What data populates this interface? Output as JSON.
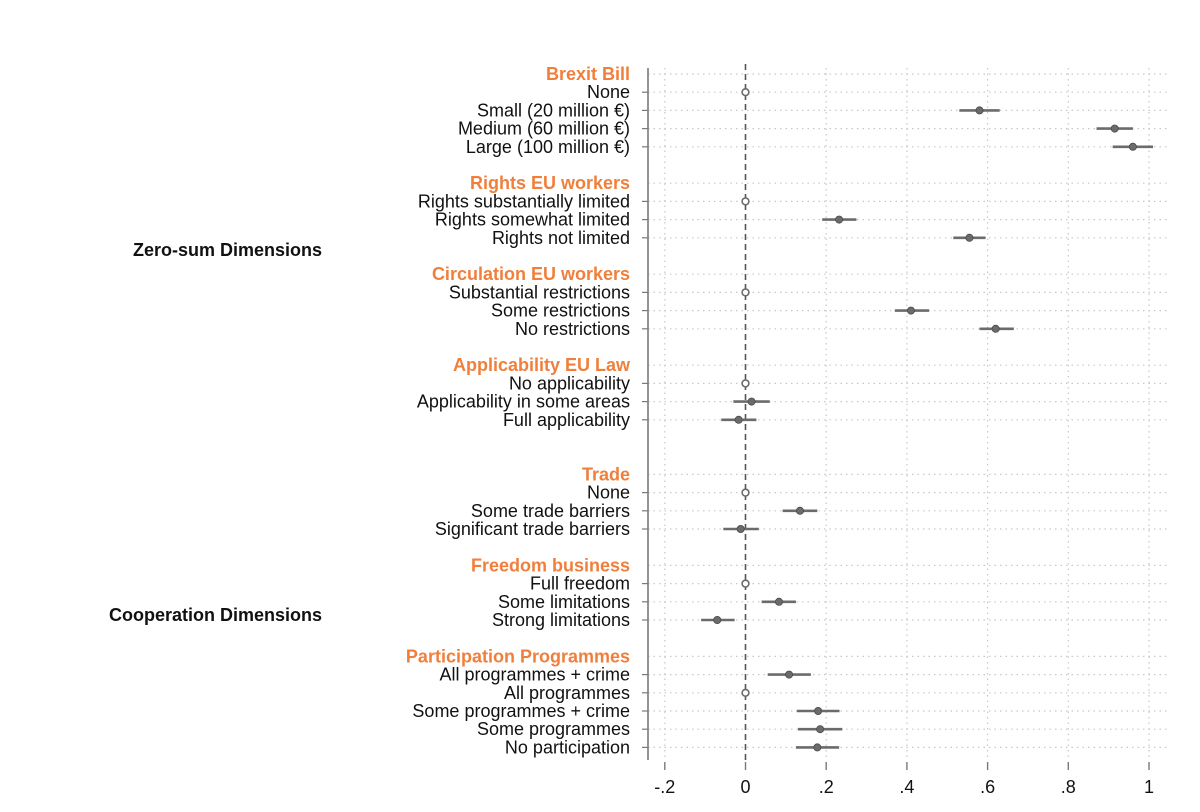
{
  "chart_data": {
    "type": "scatter",
    "xlim": [
      -0.2,
      1
    ],
    "x_ticks": [
      "-.2",
      "0",
      ".2",
      ".4",
      ".6",
      ".8",
      "1"
    ],
    "x_tick_values": [
      -0.2,
      0,
      0.2,
      0.4,
      0.6,
      0.8,
      1
    ],
    "reference_line": 0,
    "grid": true,
    "dimensions": [
      {
        "label": "Zero-sum Dimensions",
        "groups": [
          "Brexit Bill",
          "Rights EU workers",
          "Circulation EU workers",
          "Applicability EU Law"
        ]
      },
      {
        "label": "Cooperation Dimensions",
        "groups": [
          "Trade",
          "Freedom business",
          "Participation Programmes"
        ]
      }
    ],
    "groups": [
      {
        "title": "Brexit Bill",
        "items": [
          {
            "label": "None",
            "estimate": 0,
            "ci": [
              0,
              0
            ],
            "reference": true
          },
          {
            "label": "Small (20 million €)",
            "estimate": 0.58,
            "ci": [
              0.53,
              0.63
            ]
          },
          {
            "label": "Medium (60 million €)",
            "estimate": 0.915,
            "ci": [
              0.87,
              0.96
            ]
          },
          {
            "label": "Large (100 million €)",
            "estimate": 0.96,
            "ci": [
              0.91,
              1.01
            ]
          }
        ]
      },
      {
        "title": "Rights EU workers",
        "items": [
          {
            "label": "Rights substantially limited",
            "estimate": 0,
            "ci": [
              0,
              0
            ],
            "reference": true
          },
          {
            "label": "Rights somewhat limited",
            "estimate": 0.232,
            "ci": [
              0.19,
              0.275
            ]
          },
          {
            "label": "Rights not limited",
            "estimate": 0.555,
            "ci": [
              0.515,
              0.595
            ]
          }
        ]
      },
      {
        "title": "Circulation EU workers",
        "items": [
          {
            "label": "Substantial restrictions",
            "estimate": 0,
            "ci": [
              0,
              0
            ],
            "reference": true
          },
          {
            "label": "Some restrictions",
            "estimate": 0.41,
            "ci": [
              0.37,
              0.455
            ]
          },
          {
            "label": "No restrictions",
            "estimate": 0.62,
            "ci": [
              0.58,
              0.665
            ]
          }
        ]
      },
      {
        "title": "Applicability EU Law",
        "items": [
          {
            "label": "No applicability",
            "estimate": 0,
            "ci": [
              0,
              0
            ],
            "reference": true
          },
          {
            "label": "Applicability in some areas",
            "estimate": 0.015,
            "ci": [
              -0.03,
              0.06
            ]
          },
          {
            "label": "Full applicability",
            "estimate": -0.017,
            "ci": [
              -0.06,
              0.027
            ]
          }
        ]
      },
      {
        "title": "Trade",
        "items": [
          {
            "label": "None",
            "estimate": 0,
            "ci": [
              0,
              0
            ],
            "reference": true
          },
          {
            "label": "Some trade barriers",
            "estimate": 0.135,
            "ci": [
              0.092,
              0.178
            ]
          },
          {
            "label": "Significant trade barriers",
            "estimate": -0.012,
            "ci": [
              -0.055,
              0.033
            ]
          }
        ]
      },
      {
        "title": "Freedom business",
        "items": [
          {
            "label": "Full freedom",
            "estimate": 0,
            "ci": [
              0,
              0
            ],
            "reference": true
          },
          {
            "label": "Some limitations",
            "estimate": 0.083,
            "ci": [
              0.04,
              0.125
            ]
          },
          {
            "label": "Strong limitations",
            "estimate": -0.07,
            "ci": [
              -0.11,
              -0.027
            ]
          }
        ]
      },
      {
        "title": "Participation Programmes",
        "items": [
          {
            "label": "All programmes + crime",
            "estimate": 0.108,
            "ci": [
              0.055,
              0.162
            ]
          },
          {
            "label": "All programmes",
            "estimate": 0,
            "ci": [
              0,
              0
            ],
            "reference": true
          },
          {
            "label": "Some programmes + crime",
            "estimate": 0.18,
            "ci": [
              0.127,
              0.233
            ]
          },
          {
            "label": "Some programmes",
            "estimate": 0.185,
            "ci": [
              0.13,
              0.24
            ]
          },
          {
            "label": "No participation",
            "estimate": 0.178,
            "ci": [
              0.125,
              0.232
            ]
          }
        ]
      }
    ]
  },
  "colors": {
    "group_title": "#f07f3c",
    "marker": "#6b6b6b",
    "ci_line": "#6b6b6b",
    "grid": "#c8c8c8",
    "axis": "#7a7a7a"
  }
}
